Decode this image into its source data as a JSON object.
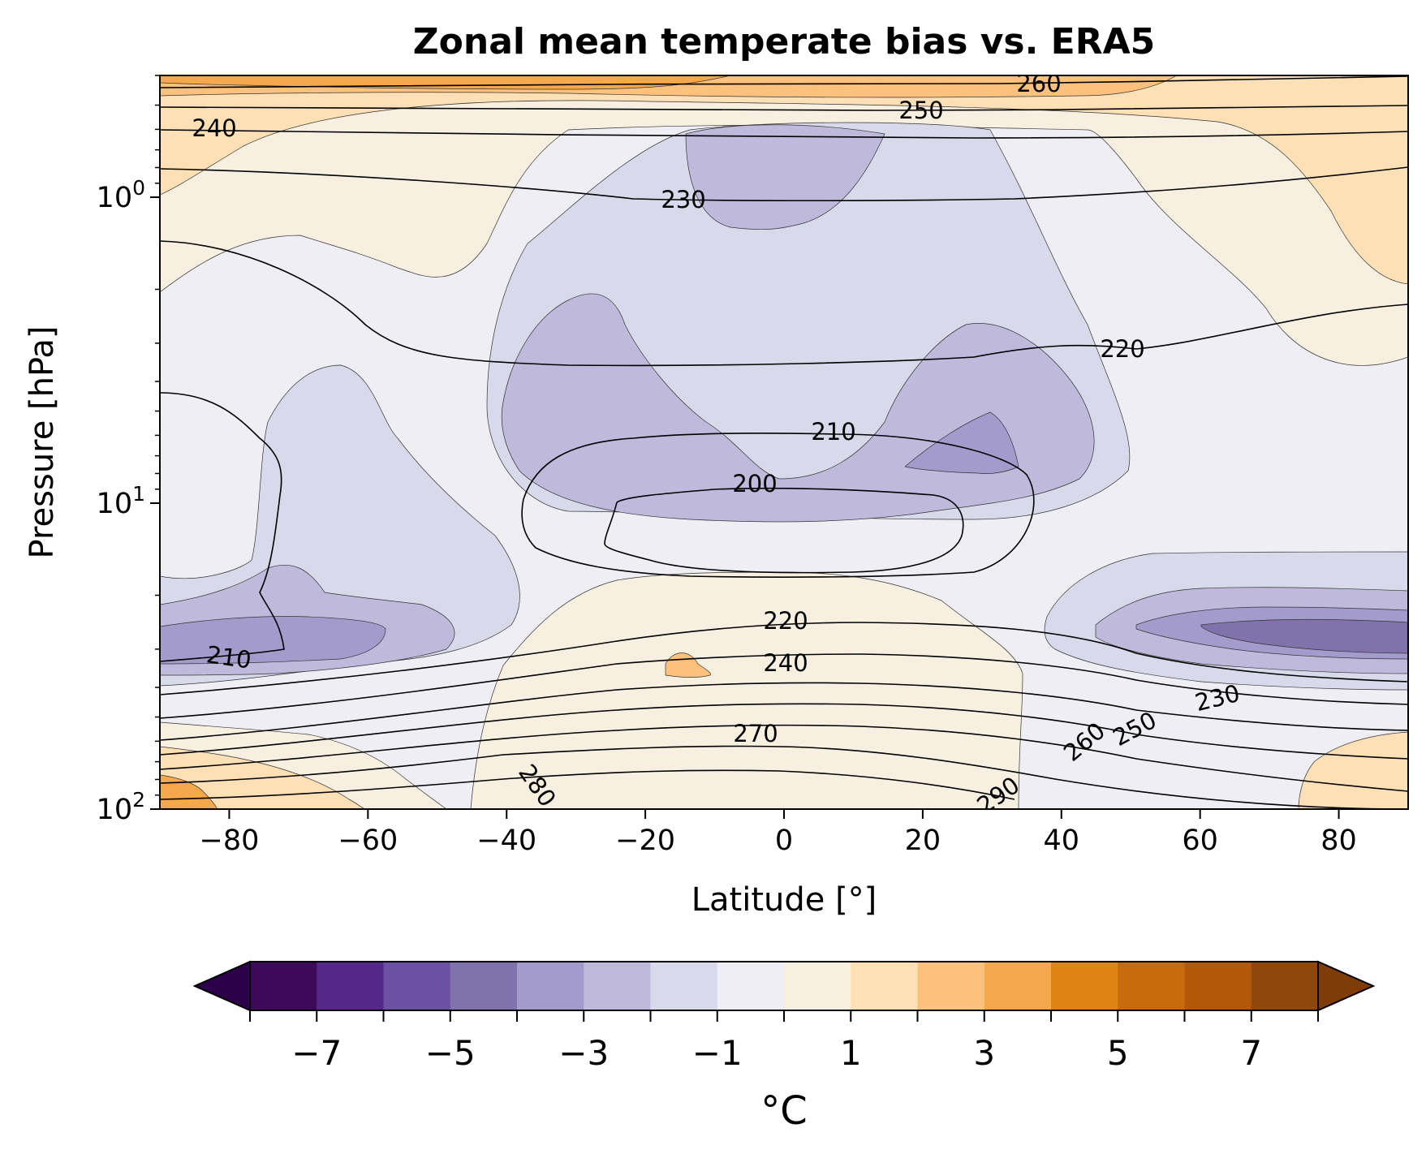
{
  "chart_data": {
    "type": "contour",
    "title": "Zonal mean temperate bias vs. ERA5",
    "xlabel": "Latitude [°]",
    "ylabel": "Pressure [hPa]",
    "xlim": [
      -90,
      90
    ],
    "ylim_hpa": [
      100,
      0.4
    ],
    "y_scale": "log",
    "x_ticks": [
      -80,
      -60,
      -40,
      -20,
      0,
      20,
      40,
      60,
      80
    ],
    "x_tick_labels": [
      "−80",
      "−60",
      "−40",
      "−20",
      "0",
      "20",
      "40",
      "60",
      "80"
    ],
    "y_ticks": [
      {
        "base": "10",
        "exp": "0",
        "value": 1
      },
      {
        "base": "10",
        "exp": "1",
        "value": 10
      },
      {
        "base": "10",
        "exp": "2",
        "value": 100
      }
    ],
    "filled_contours": {
      "quantity": "temperature bias",
      "unit": "°C",
      "levels": [
        -8,
        -7,
        -6,
        -5,
        -4,
        -3,
        -2,
        -1,
        0,
        1,
        2,
        3,
        4,
        5,
        6,
        7,
        8
      ],
      "extend": "both",
      "colormap": "PuOr_r",
      "colors": [
        "#2d004b",
        "#3d0a5a",
        "#542788",
        "#6a51a3",
        "#8073ac",
        "#a39bcb",
        "#bfb9dc",
        "#d8daeb",
        "#eeeef4",
        "#f7efe0",
        "#fde0b6",
        "#fdc17e",
        "#f6a84c",
        "#e08214",
        "#c86b0c",
        "#b35806",
        "#8f470a",
        "#7f3b08"
      ]
    },
    "colorbar": {
      "tick_values": [
        -7,
        -5,
        -3,
        -1,
        1,
        3,
        5,
        7
      ],
      "tick_labels": [
        "−7",
        "−5",
        "−3",
        "−1",
        "1",
        "3",
        "5",
        "7"
      ],
      "label": "°C",
      "orientation": "horizontal"
    },
    "temperature_contour_labels": [
      {
        "text": "260",
        "lat": 22,
        "p": 0.42
      },
      {
        "text": "250",
        "lat": 21,
        "p": 0.5
      },
      {
        "text": "240",
        "lat": -82,
        "p": 0.58
      },
      {
        "text": "230",
        "lat": -15,
        "p": 0.98
      },
      {
        "text": "220",
        "lat": 50,
        "p": 3.9
      },
      {
        "text": "210",
        "lat": 7,
        "p": 5.0
      },
      {
        "text": "200",
        "lat": -4,
        "p": 6.5
      },
      {
        "text": "220",
        "lat": 0,
        "p": 17.5
      },
      {
        "text": "240",
        "lat": 0,
        "p": 23.5
      },
      {
        "text": "270",
        "lat": -4,
        "p": 49
      },
      {
        "text": "210",
        "lat": -83,
        "p": 24.5
      },
      {
        "text": "230",
        "lat": 62,
        "p": 36
      },
      {
        "text": "250",
        "lat": 52,
        "p": 48
      },
      {
        "text": "260",
        "lat": 42,
        "p": 54
      },
      {
        "text": "280",
        "lat": -36,
        "p": 78
      },
      {
        "text": "290",
        "lat": 33,
        "p": 98
      }
    ]
  }
}
